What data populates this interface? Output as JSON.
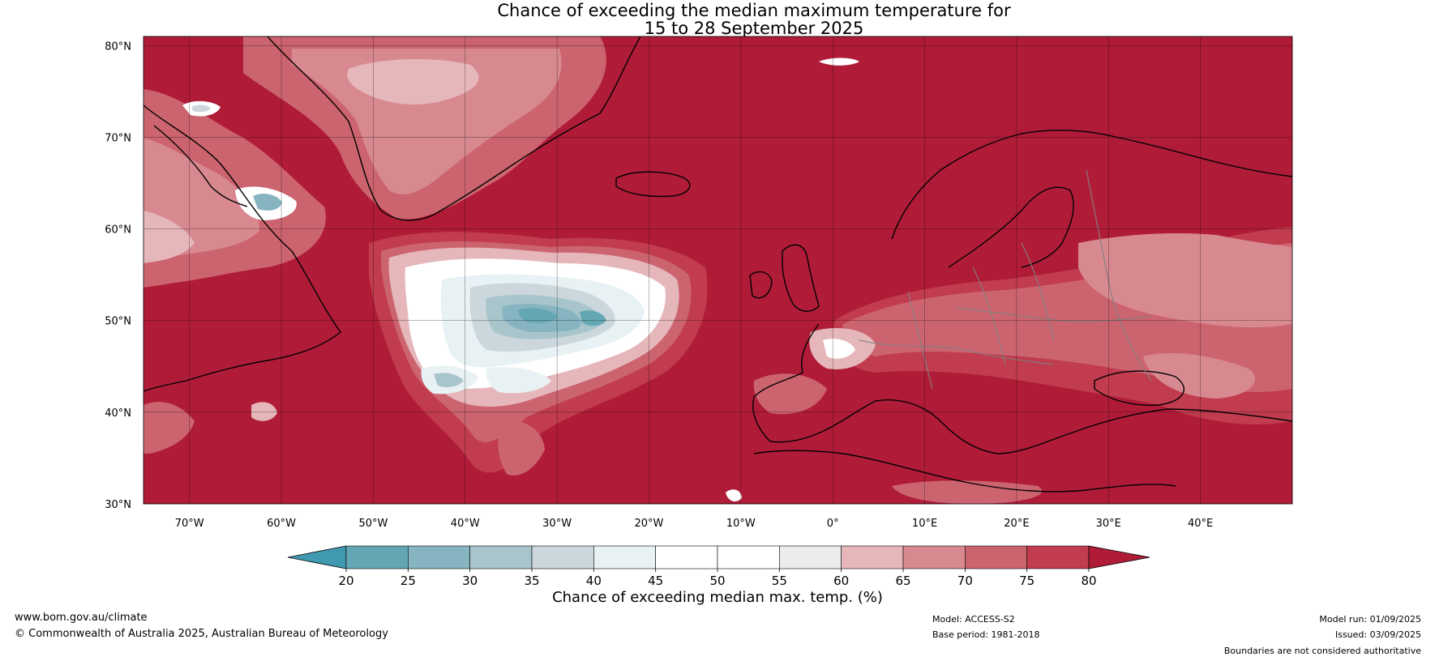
{
  "title": {
    "line1": "Chance of exceeding the median maximum temperature for",
    "line2": "15 to 28 September 2025"
  },
  "map": {
    "lon_range": [
      -75,
      50
    ],
    "lat_range": [
      30,
      81
    ],
    "lat_labels": [
      "30°N",
      "40°N",
      "50°N",
      "60°N",
      "70°N",
      "80°N"
    ],
    "lon_labels": [
      "70°W",
      "60°W",
      "50°W",
      "40°W",
      "30°W",
      "20°W",
      "10°W",
      "0°",
      "10°E",
      "20°E",
      "30°E",
      "40°E"
    ],
    "colors": {
      "c80": "#b01c38",
      "c75": "#c03c4e",
      "c70": "#cc6470",
      "c65": "#d88990",
      "c60": "#e5b6ba",
      "c55": "#ececec",
      "c50": "#ffffff",
      "c45": "#e8f1f3",
      "c40": "#cbd7dc",
      "c35": "#a8c5cb",
      "c30": "#86b4c0",
      "c25": "#64a7b4",
      "c20": "#3f9ab0",
      "coast": "#000000",
      "border": "#808080"
    }
  },
  "colorbar": {
    "ticks": [
      "20",
      "25",
      "30",
      "35",
      "40",
      "45",
      "50",
      "55",
      "60",
      "65",
      "70",
      "75",
      "80"
    ],
    "label": "Chance of exceeding median max. temp. (%)"
  },
  "footer": {
    "website": "www.bom.gov.au/climate",
    "copyright": "© Commonwealth of Australia 2025, Australian Bureau of Meteorology",
    "model": "Model: ACCESS-S2",
    "base_period": "Base period: 1981-2018",
    "model_run": "Model run: 01/09/2025",
    "issued": "Issued: 03/09/2025",
    "disclaimer": "Boundaries are not considered authoritative"
  }
}
